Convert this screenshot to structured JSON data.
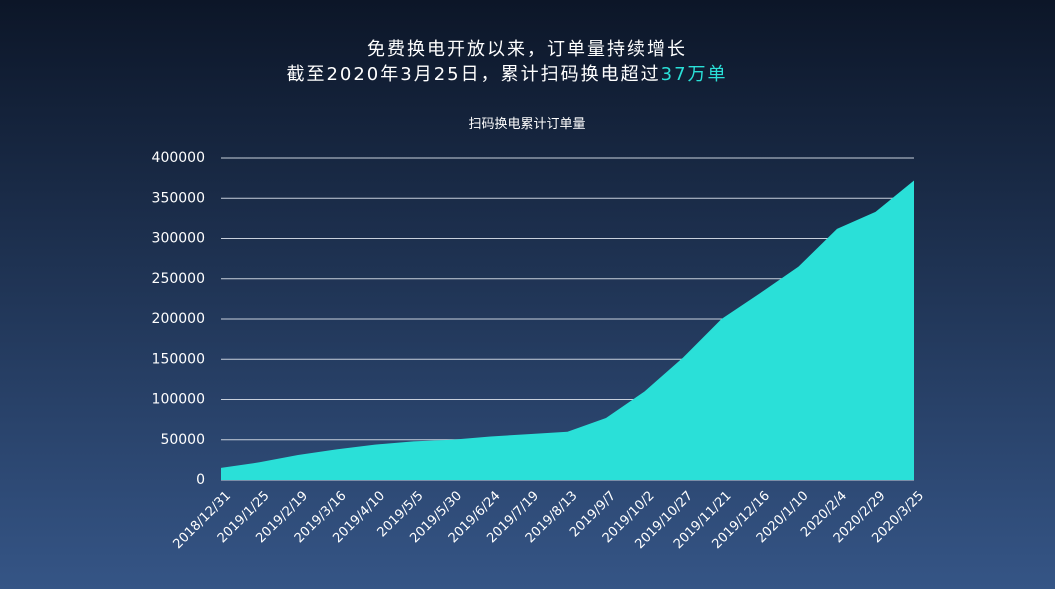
{
  "chart_data": {
    "type": "area",
    "title": "免费换电开放以来，订单量持续增长",
    "subtitle": "截至2020年3月25日，累计扫码换电超过",
    "highlight": "37万单",
    "categories": [
      "2018/12/31",
      "2019/1/25",
      "2019/2/19",
      "2019/3/16",
      "2019/4/10",
      "2019/5/5",
      "2019/5/30",
      "2019/6/24",
      "2019/7/19",
      "2019/8/13",
      "2019/9/7",
      "2019/10/2",
      "2019/10/27",
      "2019/11/21",
      "2019/12/16",
      "2020/1/10",
      "2020/2/4",
      "2020/2/29",
      "2020/3/25"
    ],
    "series": [
      {
        "name": "扫码换电累计订单量",
        "color": "#2ae0d8",
        "values": [
          15000,
          22000,
          31000,
          38000,
          44000,
          48000,
          50000,
          54000,
          57000,
          60000,
          77000,
          110000,
          152000,
          200000,
          232000,
          265000,
          312000,
          333000,
          372000
        ]
      }
    ],
    "ylim": [
      0,
      400000
    ],
    "yticks": [
      0,
      50000,
      100000,
      150000,
      200000,
      250000,
      300000,
      350000,
      400000
    ],
    "grid": true
  }
}
